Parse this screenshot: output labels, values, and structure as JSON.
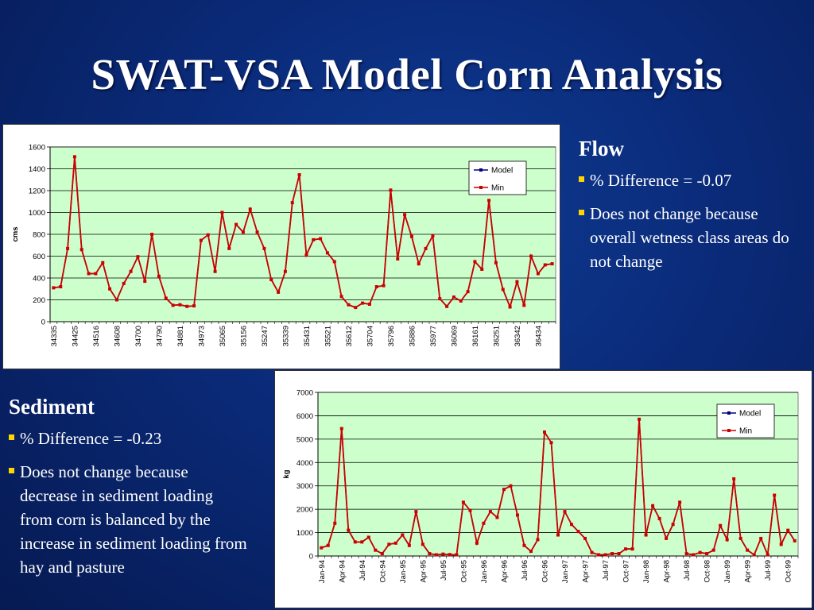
{
  "slide": {
    "title": "SWAT-VSA Model Corn Analysis"
  },
  "flow": {
    "heading": "Flow",
    "bullets": [
      "%  Difference = -0.07",
      "Does not change because overall wetness class areas do not change"
    ]
  },
  "sediment": {
    "heading": "Sediment",
    "bullets": [
      "%  Difference = -0.23",
      "Does not change because decrease in sediment loading from corn is balanced by the increase in sediment loading from hay and pasture"
    ]
  },
  "colors": {
    "plot_bg": "#ccffcc",
    "model": "#000080",
    "min": "#cc0000",
    "bullet": "#ffd400"
  },
  "chart_data": [
    {
      "type": "line",
      "ylabel": "cms",
      "ylim": [
        0,
        1600
      ],
      "yticks": [
        0,
        200,
        400,
        600,
        800,
        1000,
        1200,
        1400,
        1600
      ],
      "xtick_labels": [
        "34335",
        "34425",
        "34516",
        "34608",
        "34700",
        "34790",
        "34881",
        "34973",
        "35065",
        "35156",
        "35247",
        "35339",
        "35431",
        "35521",
        "35612",
        "35704",
        "35796",
        "35886",
        "35977",
        "36069",
        "36161",
        "36251",
        "36342",
        "36434"
      ],
      "legend": [
        "Model",
        "Min"
      ],
      "series": [
        {
          "name": "Model",
          "values": [
            310,
            320,
            670,
            1510,
            660,
            440,
            440,
            540,
            300,
            200,
            350,
            460,
            595,
            370,
            800,
            415,
            215,
            150,
            155,
            140,
            145,
            745,
            795,
            460,
            1000,
            670,
            890,
            820,
            1030,
            820,
            670,
            385,
            270,
            460,
            1090,
            1345,
            610,
            750,
            760,
            630,
            550,
            230,
            155,
            130,
            170,
            160,
            320,
            330,
            1205,
            575,
            980,
            780,
            530,
            670,
            785,
            210,
            140,
            225,
            190,
            275,
            550,
            480,
            1110,
            540,
            295,
            135,
            365,
            150,
            600,
            440,
            520,
            530
          ]
        },
        {
          "name": "Min",
          "values": [
            310,
            320,
            670,
            1510,
            660,
            440,
            440,
            540,
            300,
            200,
            350,
            460,
            595,
            370,
            800,
            415,
            215,
            150,
            155,
            140,
            145,
            745,
            795,
            460,
            1000,
            670,
            890,
            820,
            1030,
            820,
            670,
            385,
            270,
            460,
            1090,
            1345,
            610,
            750,
            760,
            630,
            550,
            230,
            155,
            130,
            170,
            160,
            320,
            330,
            1205,
            575,
            980,
            780,
            530,
            670,
            785,
            210,
            140,
            225,
            190,
            275,
            550,
            480,
            1110,
            540,
            295,
            135,
            365,
            150,
            600,
            440,
            520,
            530
          ]
        }
      ]
    },
    {
      "type": "line",
      "ylabel": "kg",
      "ylim": [
        0,
        7000
      ],
      "yticks": [
        0,
        1000,
        2000,
        3000,
        4000,
        5000,
        6000,
        7000
      ],
      "xtick_labels": [
        "Jan-94",
        "Apr-94",
        "Jul-94",
        "Oct-94",
        "Jan-95",
        "Apr-95",
        "Jul-95",
        "Oct-95",
        "Jan-96",
        "Apr-96",
        "Jul-96",
        "Oct-96",
        "Jan-97",
        "Apr-97",
        "Jul-97",
        "Oct-97",
        "Jan-98",
        "Apr-98",
        "Jul-98",
        "Oct-98",
        "Jan-99",
        "Apr-99",
        "Jul-99",
        "Oct-99"
      ],
      "legend": [
        "Model",
        "Min"
      ],
      "series": [
        {
          "name": "Model",
          "values": [
            350,
            450,
            1400,
            5450,
            1100,
            600,
            600,
            800,
            250,
            100,
            500,
            550,
            900,
            450,
            1900,
            500,
            100,
            50,
            80,
            60,
            50,
            2300,
            1950,
            550,
            1400,
            1900,
            1650,
            2850,
            3000,
            1750,
            450,
            200,
            700,
            5300,
            4850,
            900,
            1900,
            1350,
            1050,
            750,
            150,
            50,
            50,
            100,
            100,
            300,
            300,
            5850,
            900,
            2150,
            1600,
            750,
            1350,
            2300,
            100,
            50,
            150,
            100,
            250,
            1300,
            700,
            3300,
            750,
            250,
            50,
            750,
            50,
            2600,
            500,
            1100,
            650
          ]
        },
        {
          "name": "Min",
          "values": [
            350,
            450,
            1400,
            5450,
            1100,
            600,
            600,
            800,
            250,
            100,
            500,
            550,
            900,
            450,
            1900,
            500,
            100,
            50,
            80,
            60,
            50,
            2300,
            1950,
            550,
            1400,
            1900,
            1650,
            2850,
            3000,
            1750,
            450,
            200,
            700,
            5300,
            4850,
            900,
            1900,
            1350,
            1050,
            750,
            150,
            50,
            50,
            100,
            100,
            300,
            300,
            5850,
            900,
            2150,
            1600,
            750,
            1350,
            2300,
            100,
            50,
            150,
            100,
            250,
            1300,
            700,
            3300,
            750,
            250,
            50,
            750,
            50,
            2600,
            500,
            1100,
            650
          ]
        }
      ]
    }
  ]
}
